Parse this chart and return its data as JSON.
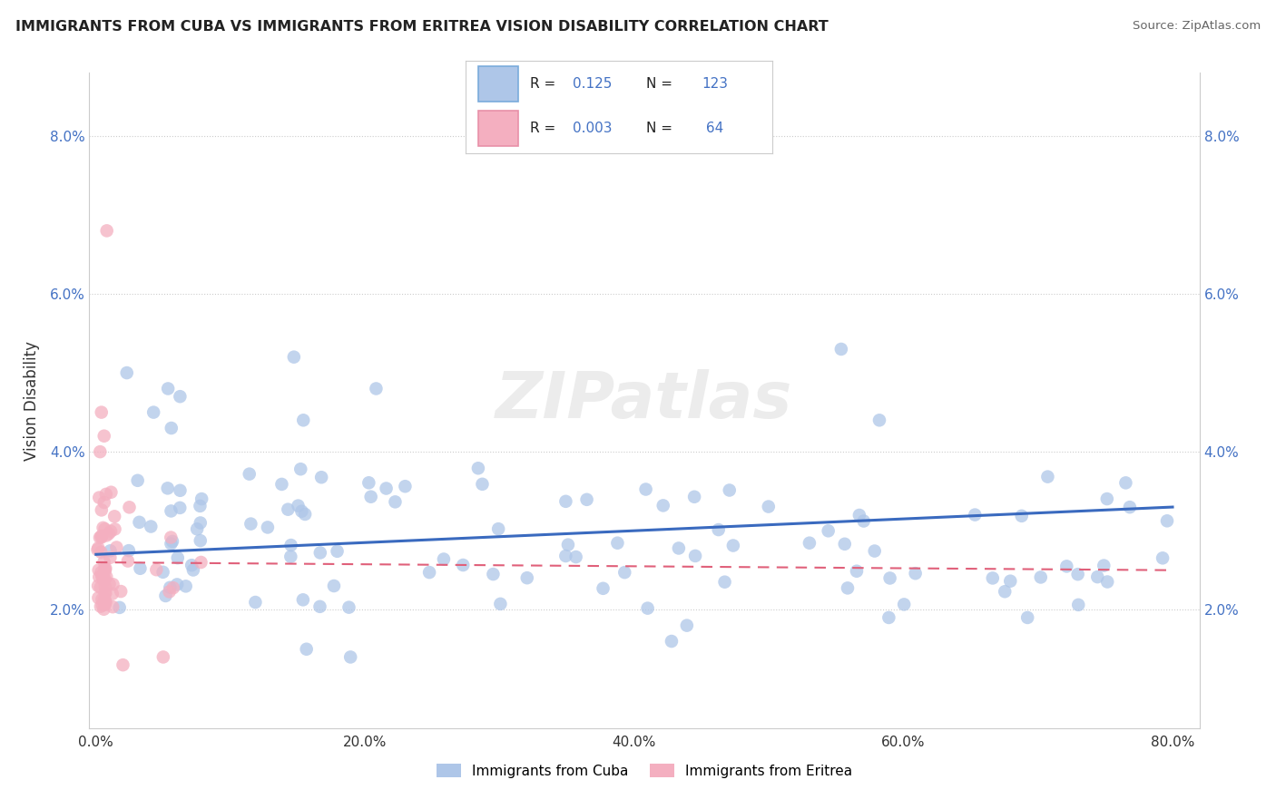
{
  "title": "IMMIGRANTS FROM CUBA VS IMMIGRANTS FROM ERITREA VISION DISABILITY CORRELATION CHART",
  "source": "Source: ZipAtlas.com",
  "ylabel": "Vision Disability",
  "legend_bottom": [
    "Immigrants from Cuba",
    "Immigrants from Eritrea"
  ],
  "cuba_R": "0.125",
  "cuba_N": "123",
  "eritrea_R": "0.003",
  "eritrea_N": "64",
  "xlim": [
    -0.005,
    0.82
  ],
  "ylim": [
    0.005,
    0.088
  ],
  "yticks": [
    0.02,
    0.04,
    0.06,
    0.08
  ],
  "ytick_labels": [
    "2.0%",
    "4.0%",
    "6.0%",
    "8.0%"
  ],
  "xticks": [
    0.0,
    0.2,
    0.4,
    0.6,
    0.8
  ],
  "xtick_labels": [
    "0.0%",
    "20.0%",
    "40.0%",
    "60.0%",
    "80.0%"
  ],
  "cuba_color": "#aec6e8",
  "eritrea_color": "#f4afc0",
  "cuba_line_color": "#3a6abf",
  "eritrea_line_color": "#e0607a",
  "background_color": "#ffffff",
  "watermark": "ZIPatlas",
  "cuba_trend": [
    0.0,
    0.8,
    0.027,
    0.033
  ],
  "eritrea_trend": [
    0.0,
    0.8,
    0.026,
    0.025
  ]
}
